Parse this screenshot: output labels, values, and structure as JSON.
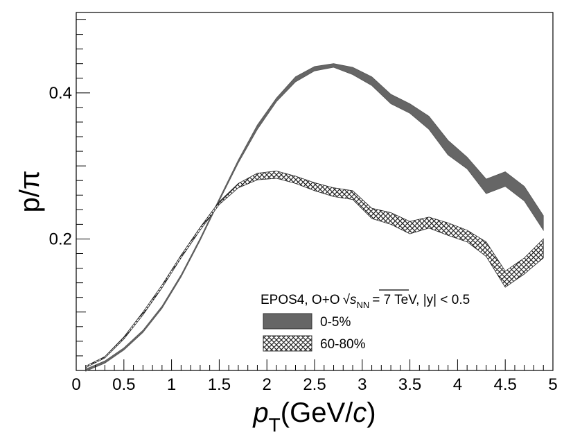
{
  "chart_data": {
    "type": "area",
    "title": "",
    "xlabel": "p_T(GeV/c)",
    "xlabel_parts": {
      "p": "p",
      "sub": "T",
      "unit": "(GeV/",
      "c": "c",
      "close": ")"
    },
    "ylabel": "p/π",
    "xlim": [
      0,
      5
    ],
    "ylim": [
      0.02,
      0.51
    ],
    "x_ticks": [
      {
        "v": 0,
        "label": "0"
      },
      {
        "v": 0.5,
        "label": "0.5"
      },
      {
        "v": 1,
        "label": "1"
      },
      {
        "v": 1.5,
        "label": "1.5"
      },
      {
        "v": 2,
        "label": "2"
      },
      {
        "v": 2.5,
        "label": "2.5"
      },
      {
        "v": 3,
        "label": "3"
      },
      {
        "v": 3.5,
        "label": "3.5"
      },
      {
        "v": 4,
        "label": "4"
      },
      {
        "v": 4.5,
        "label": "4.5"
      },
      {
        "v": 5,
        "label": "5"
      }
    ],
    "y_ticks": [
      {
        "v": 0.2,
        "label": "0.2"
      },
      {
        "v": 0.4,
        "label": "0.4"
      }
    ],
    "legend": {
      "title_prefix": "EPOS4, O+O",
      "sqrt_symbol": "√",
      "s": "s",
      "s_sub": "NN",
      "title_suffix": "= 7 TeV, |y| < 0.5",
      "placement": "bottom-right"
    },
    "series": [
      {
        "name": "0-5%",
        "fill": "#666666",
        "style": "solid",
        "x": [
          0.1,
          0.3,
          0.5,
          0.7,
          0.9,
          1.1,
          1.3,
          1.5,
          1.7,
          1.9,
          2.1,
          2.3,
          2.5,
          2.7,
          2.9,
          3.1,
          3.3,
          3.5,
          3.7,
          3.9,
          4.1,
          4.3,
          4.5,
          4.7,
          4.9
        ],
        "low": [
          0.019,
          0.03,
          0.048,
          0.072,
          0.105,
          0.148,
          0.198,
          0.252,
          0.304,
          0.35,
          0.388,
          0.415,
          0.43,
          0.435,
          0.425,
          0.41,
          0.385,
          0.372,
          0.35,
          0.315,
          0.296,
          0.262,
          0.272,
          0.252,
          0.212
        ],
        "high": [
          0.022,
          0.033,
          0.051,
          0.075,
          0.108,
          0.151,
          0.201,
          0.255,
          0.308,
          0.356,
          0.393,
          0.422,
          0.436,
          0.44,
          0.435,
          0.422,
          0.398,
          0.385,
          0.368,
          0.335,
          0.312,
          0.282,
          0.292,
          0.272,
          0.232
        ]
      },
      {
        "name": "60-80%",
        "fill": "crosshatch",
        "style": "hatched",
        "x": [
          0.1,
          0.3,
          0.5,
          0.7,
          0.9,
          1.1,
          1.3,
          1.5,
          1.7,
          1.9,
          2.1,
          2.3,
          2.5,
          2.7,
          2.9,
          3.1,
          3.3,
          3.5,
          3.7,
          3.9,
          4.1,
          4.3,
          4.5,
          4.7,
          4.9
        ],
        "low": [
          0.024,
          0.037,
          0.063,
          0.096,
          0.133,
          0.174,
          0.212,
          0.247,
          0.27,
          0.281,
          0.283,
          0.276,
          0.266,
          0.258,
          0.254,
          0.228,
          0.22,
          0.207,
          0.215,
          0.205,
          0.196,
          0.176,
          0.134,
          0.152,
          0.174
        ],
        "high": [
          0.026,
          0.039,
          0.066,
          0.1,
          0.137,
          0.178,
          0.216,
          0.251,
          0.276,
          0.29,
          0.293,
          0.286,
          0.277,
          0.27,
          0.266,
          0.242,
          0.236,
          0.224,
          0.23,
          0.222,
          0.212,
          0.196,
          0.156,
          0.174,
          0.2
        ]
      }
    ]
  }
}
